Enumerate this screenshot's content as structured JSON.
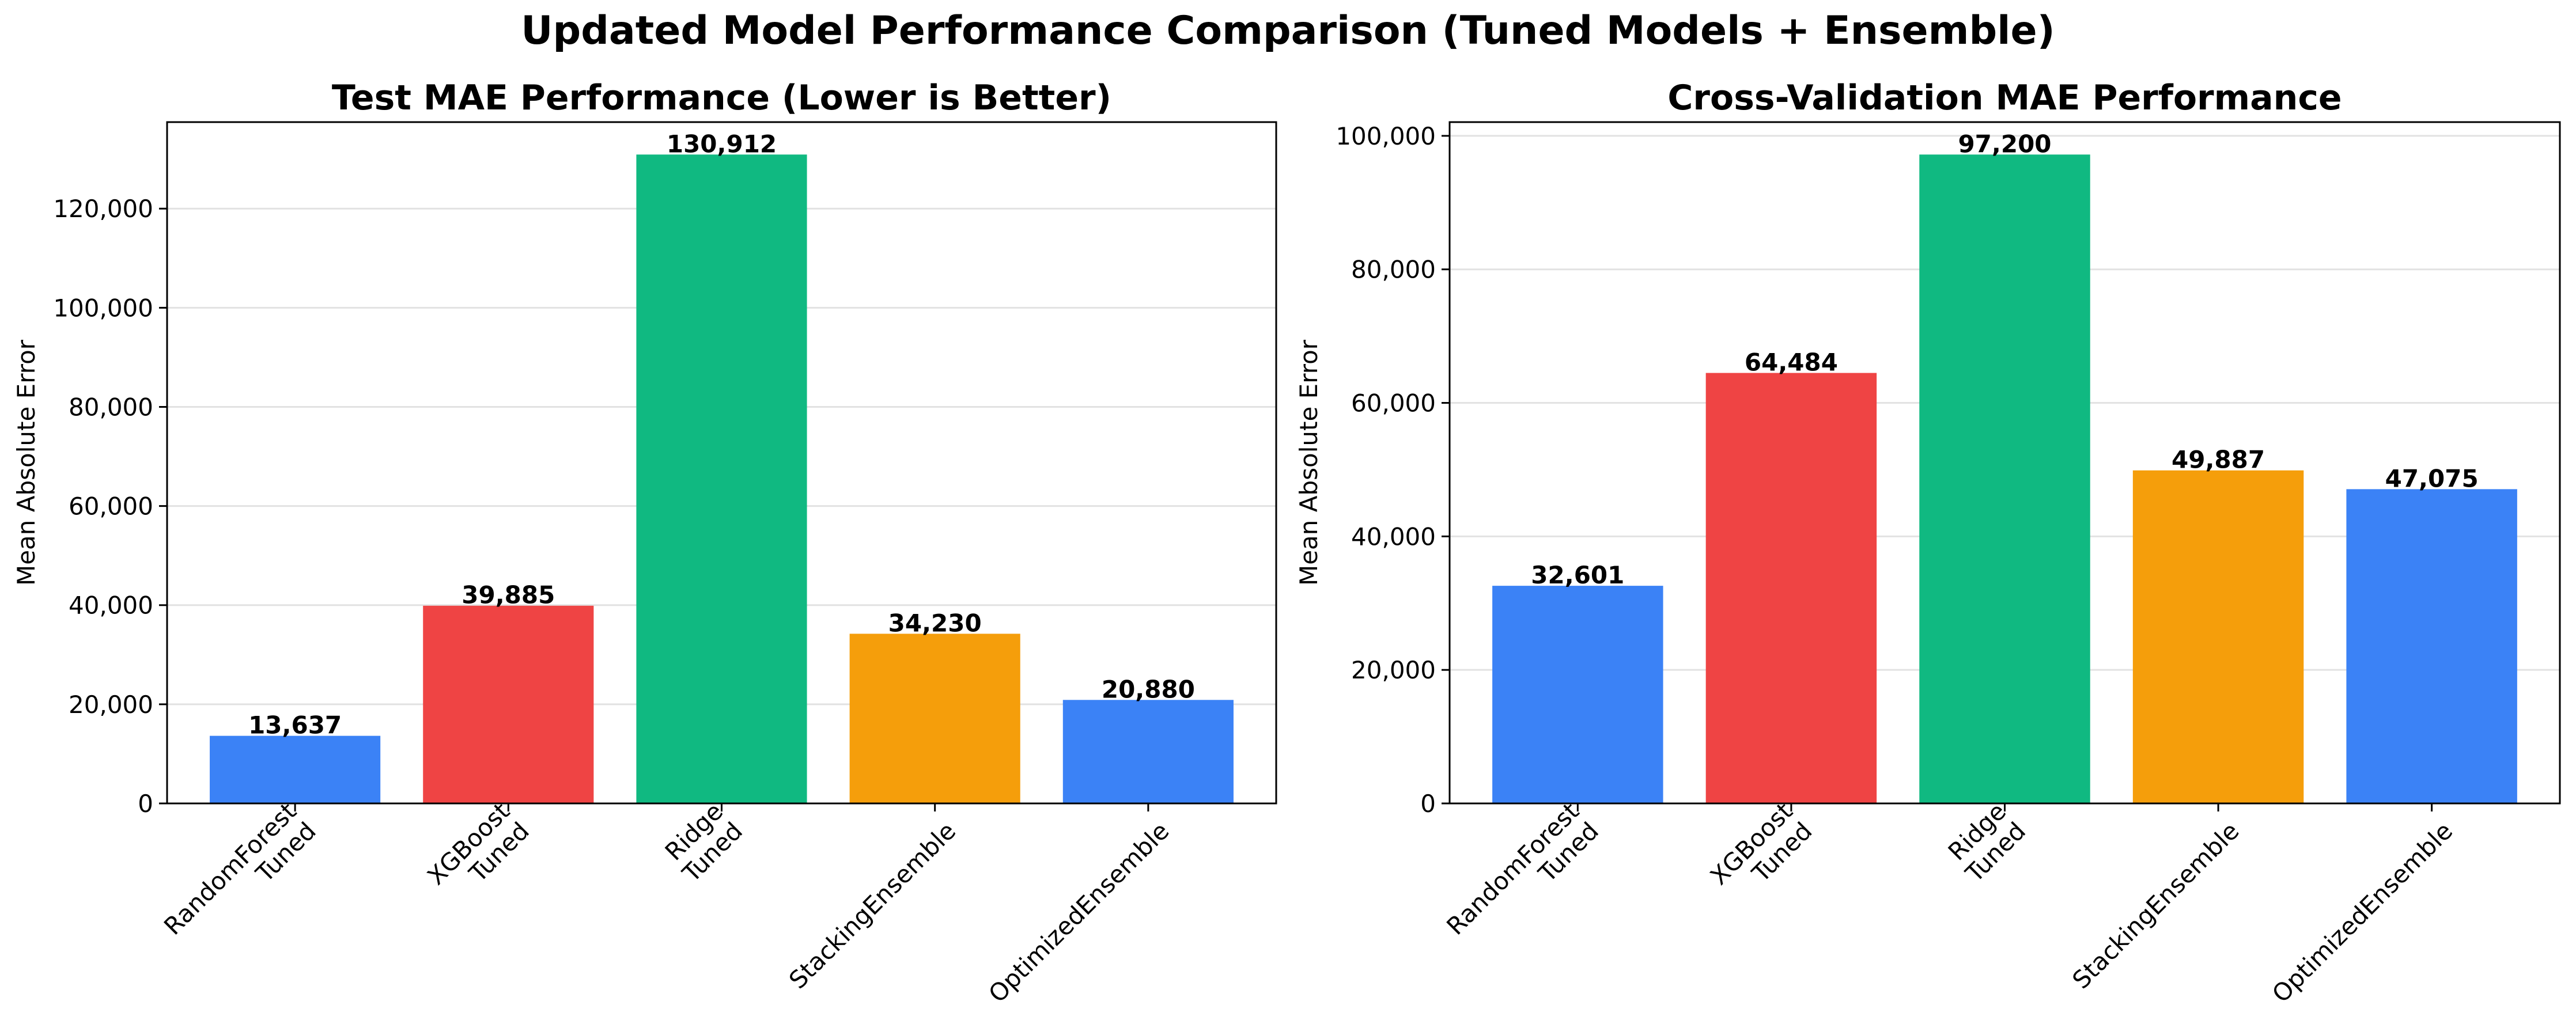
{
  "figure_title": "Updated Model Performance Comparison (Tuned Models + Ensemble)",
  "chart_data": [
    {
      "type": "bar",
      "title": "Test MAE Performance (Lower is Better)",
      "xlabel": "",
      "ylabel": "Mean Absolute Error",
      "categories": [
        [
          "RandomForest",
          "Tuned"
        ],
        [
          "XGBoost",
          "Tuned"
        ],
        [
          "Ridge",
          "Tuned"
        ],
        [
          "StackingEnsemble"
        ],
        [
          "OptimizedEnsemble"
        ]
      ],
      "values": [
        13637,
        39885,
        130912,
        34230,
        20880
      ],
      "value_labels": [
        "13,637",
        "39,885",
        "130,912",
        "34,230",
        "20,880"
      ],
      "colors": [
        "#3b82f6",
        "#ef4444",
        "#10b981",
        "#f59e0b",
        "#3b82f6"
      ],
      "ylim": [
        0,
        137458
      ],
      "yticks": [
        0,
        20000,
        40000,
        60000,
        80000,
        100000,
        120000
      ],
      "ytick_labels": [
        "0",
        "20,000",
        "40,000",
        "60,000",
        "80,000",
        "100,000",
        "120,000"
      ],
      "grid": "y"
    },
    {
      "type": "bar",
      "title": "Cross-Validation MAE Performance",
      "xlabel": "",
      "ylabel": "Mean Absolute Error",
      "categories": [
        [
          "RandomForest",
          "Tuned"
        ],
        [
          "XGBoost",
          "Tuned"
        ],
        [
          "Ridge",
          "Tuned"
        ],
        [
          "StackingEnsemble"
        ],
        [
          "OptimizedEnsemble"
        ]
      ],
      "values": [
        32601,
        64484,
        97200,
        49887,
        47075
      ],
      "value_labels": [
        "32,601",
        "64,484",
        "97,200",
        "49,887",
        "47,075"
      ],
      "colors": [
        "#3b82f6",
        "#ef4444",
        "#10b981",
        "#f59e0b",
        "#3b82f6"
      ],
      "ylim": [
        0,
        102060
      ],
      "yticks": [
        0,
        20000,
        40000,
        60000,
        80000,
        100000
      ],
      "ytick_labels": [
        "0",
        "20,000",
        "40,000",
        "60,000",
        "80,000",
        "100,000"
      ],
      "grid": "y"
    }
  ]
}
